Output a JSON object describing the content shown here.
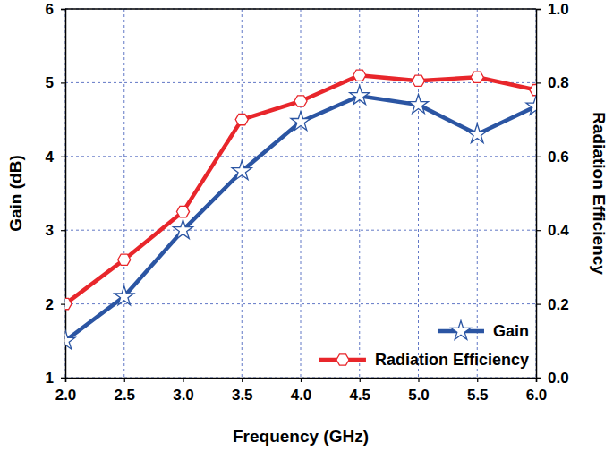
{
  "chart_data": {
    "type": "line",
    "x_label": "Frequency (GHz)",
    "y_label": "Gain (dB)",
    "y2_label": "Radiation Efficiency",
    "x": [
      2,
      2.5,
      3,
      3.5,
      4,
      4.5,
      5,
      5.5,
      6
    ],
    "series": [
      {
        "name": "Gain",
        "color": "#2b55a3",
        "marker": "star",
        "axis": "y",
        "values": [
          1.5,
          2.1,
          3.0,
          3.8,
          4.47,
          4.82,
          4.7,
          4.3,
          4.68
        ]
      },
      {
        "name": "Radiation Efficiency",
        "color": "#e8262b",
        "marker": "hexagon",
        "axis": "y2",
        "values": [
          0.2,
          0.32,
          0.45,
          0.7,
          0.75,
          0.82,
          0.805,
          0.815,
          0.78
        ]
      }
    ],
    "xlim": [
      2,
      6
    ],
    "xticks": [
      {
        "value": 2,
        "label": "2.0"
      },
      2.5,
      {
        "value": 3,
        "label": "3.0"
      },
      3.5,
      {
        "value": 4,
        "label": "4.0"
      },
      4.5,
      {
        "value": 5,
        "label": "5.0"
      },
      5.5,
      {
        "value": 6,
        "label": "6.0"
      }
    ],
    "ylim": [
      1,
      6
    ],
    "yticks": [
      1,
      2,
      3,
      4,
      5,
      6
    ],
    "y2lim": [
      0,
      1
    ],
    "y2ticks": [
      {
        "value": 0,
        "label": "0.0"
      },
      0.2,
      0.4,
      0.6,
      0.8,
      {
        "value": 1,
        "label": "1.0"
      }
    ],
    "grid": true,
    "legend": "lower right"
  }
}
